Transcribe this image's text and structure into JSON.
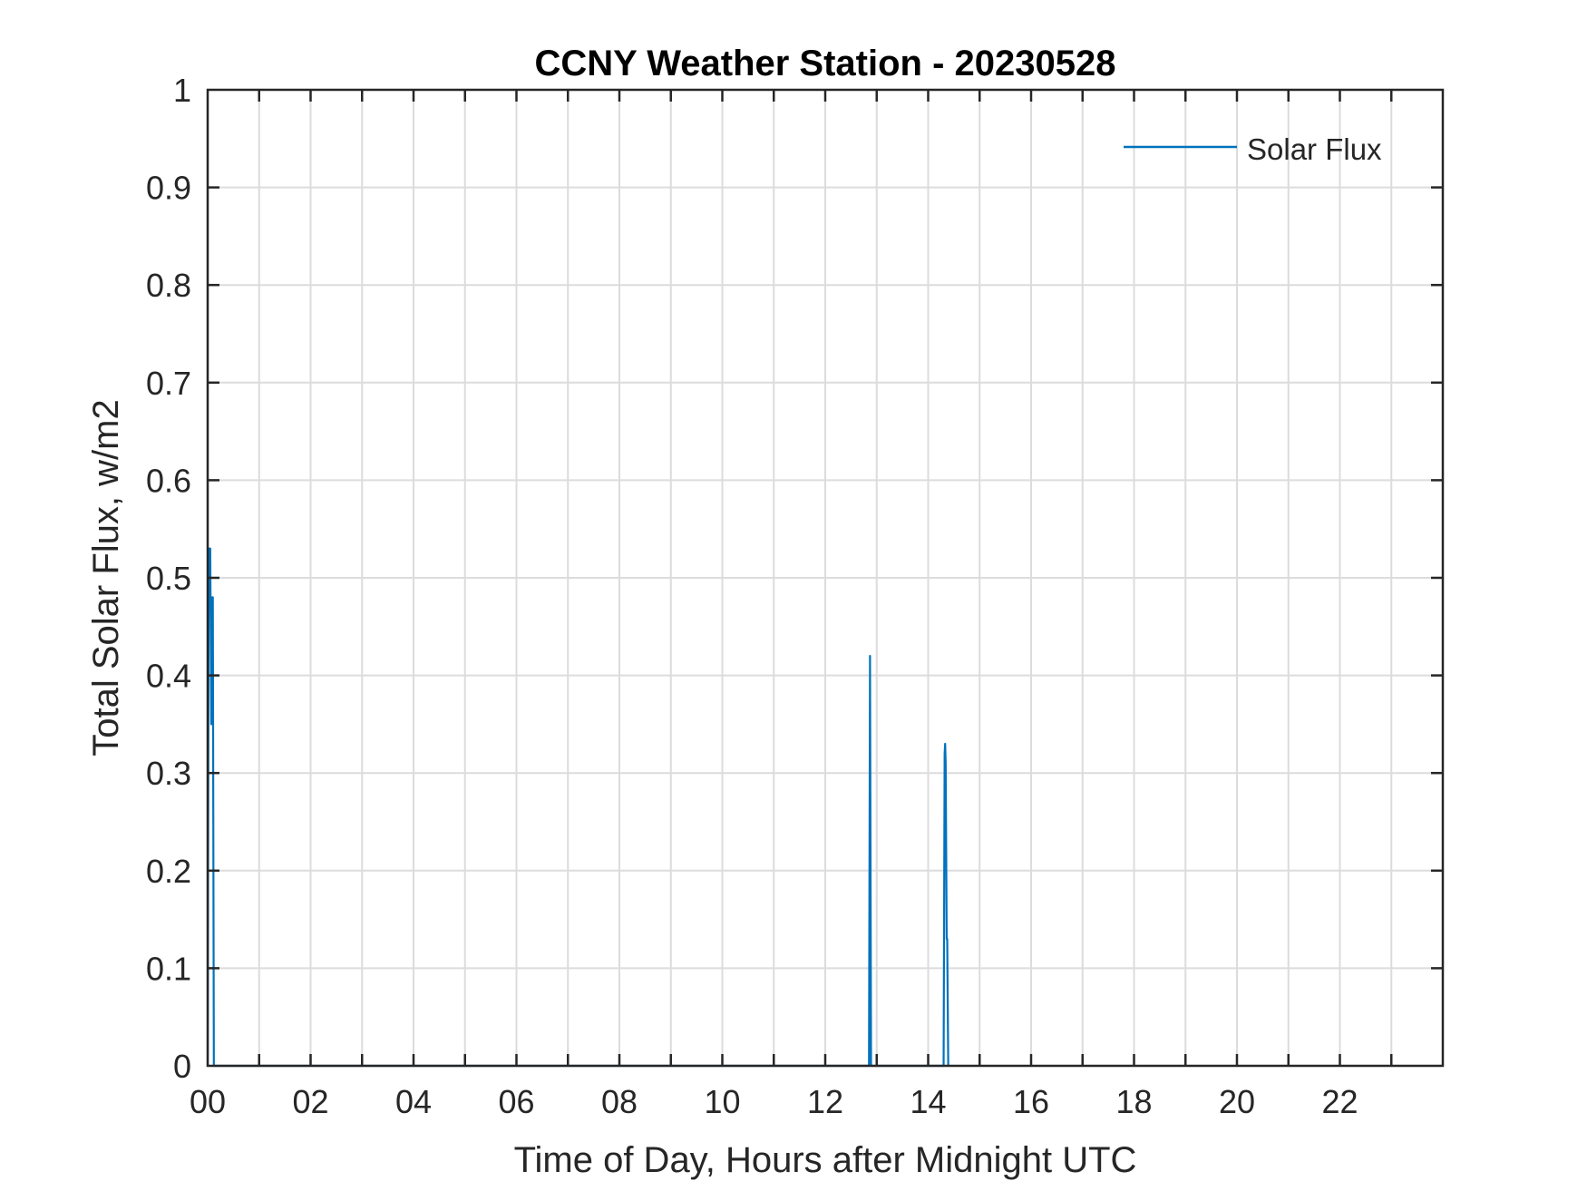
{
  "chart_data": {
    "type": "line",
    "title": "CCNY Weather Station - 20230528",
    "xlabel": "Time of Day, Hours after Midnight UTC",
    "ylabel": "Total Solar Flux, w/m2",
    "xlim": [
      0,
      24
    ],
    "ylim": [
      0,
      1
    ],
    "xticks": [
      0,
      2,
      4,
      6,
      8,
      10,
      12,
      14,
      16,
      18,
      20,
      22
    ],
    "xtick_labels": [
      "00",
      "02",
      "04",
      "06",
      "08",
      "10",
      "12",
      "14",
      "16",
      "18",
      "20",
      "22"
    ],
    "yticks": [
      0,
      0.1,
      0.2,
      0.3,
      0.4,
      0.5,
      0.6,
      0.7,
      0.8,
      0.9,
      1
    ],
    "ytick_labels": [
      "0",
      "0.1",
      "0.2",
      "0.3",
      "0.4",
      "0.5",
      "0.6",
      "0.7",
      "0.8",
      "0.9",
      "1"
    ],
    "grid": true,
    "legend_position": "top-right",
    "series": [
      {
        "name": "Solar Flux",
        "color": "#0072BD",
        "x": [
          0.0,
          0.02,
          0.05,
          0.07,
          0.08,
          0.1,
          0.12,
          12.85,
          12.87,
          12.89,
          14.3,
          14.32,
          14.33,
          14.34,
          14.36,
          14.37,
          14.39
        ],
        "y": [
          0,
          0.53,
          0.53,
          0.35,
          0.48,
          0.48,
          0,
          0,
          0.42,
          0,
          0,
          0.32,
          0.33,
          0.31,
          0.13,
          0.13,
          0
        ]
      }
    ]
  }
}
